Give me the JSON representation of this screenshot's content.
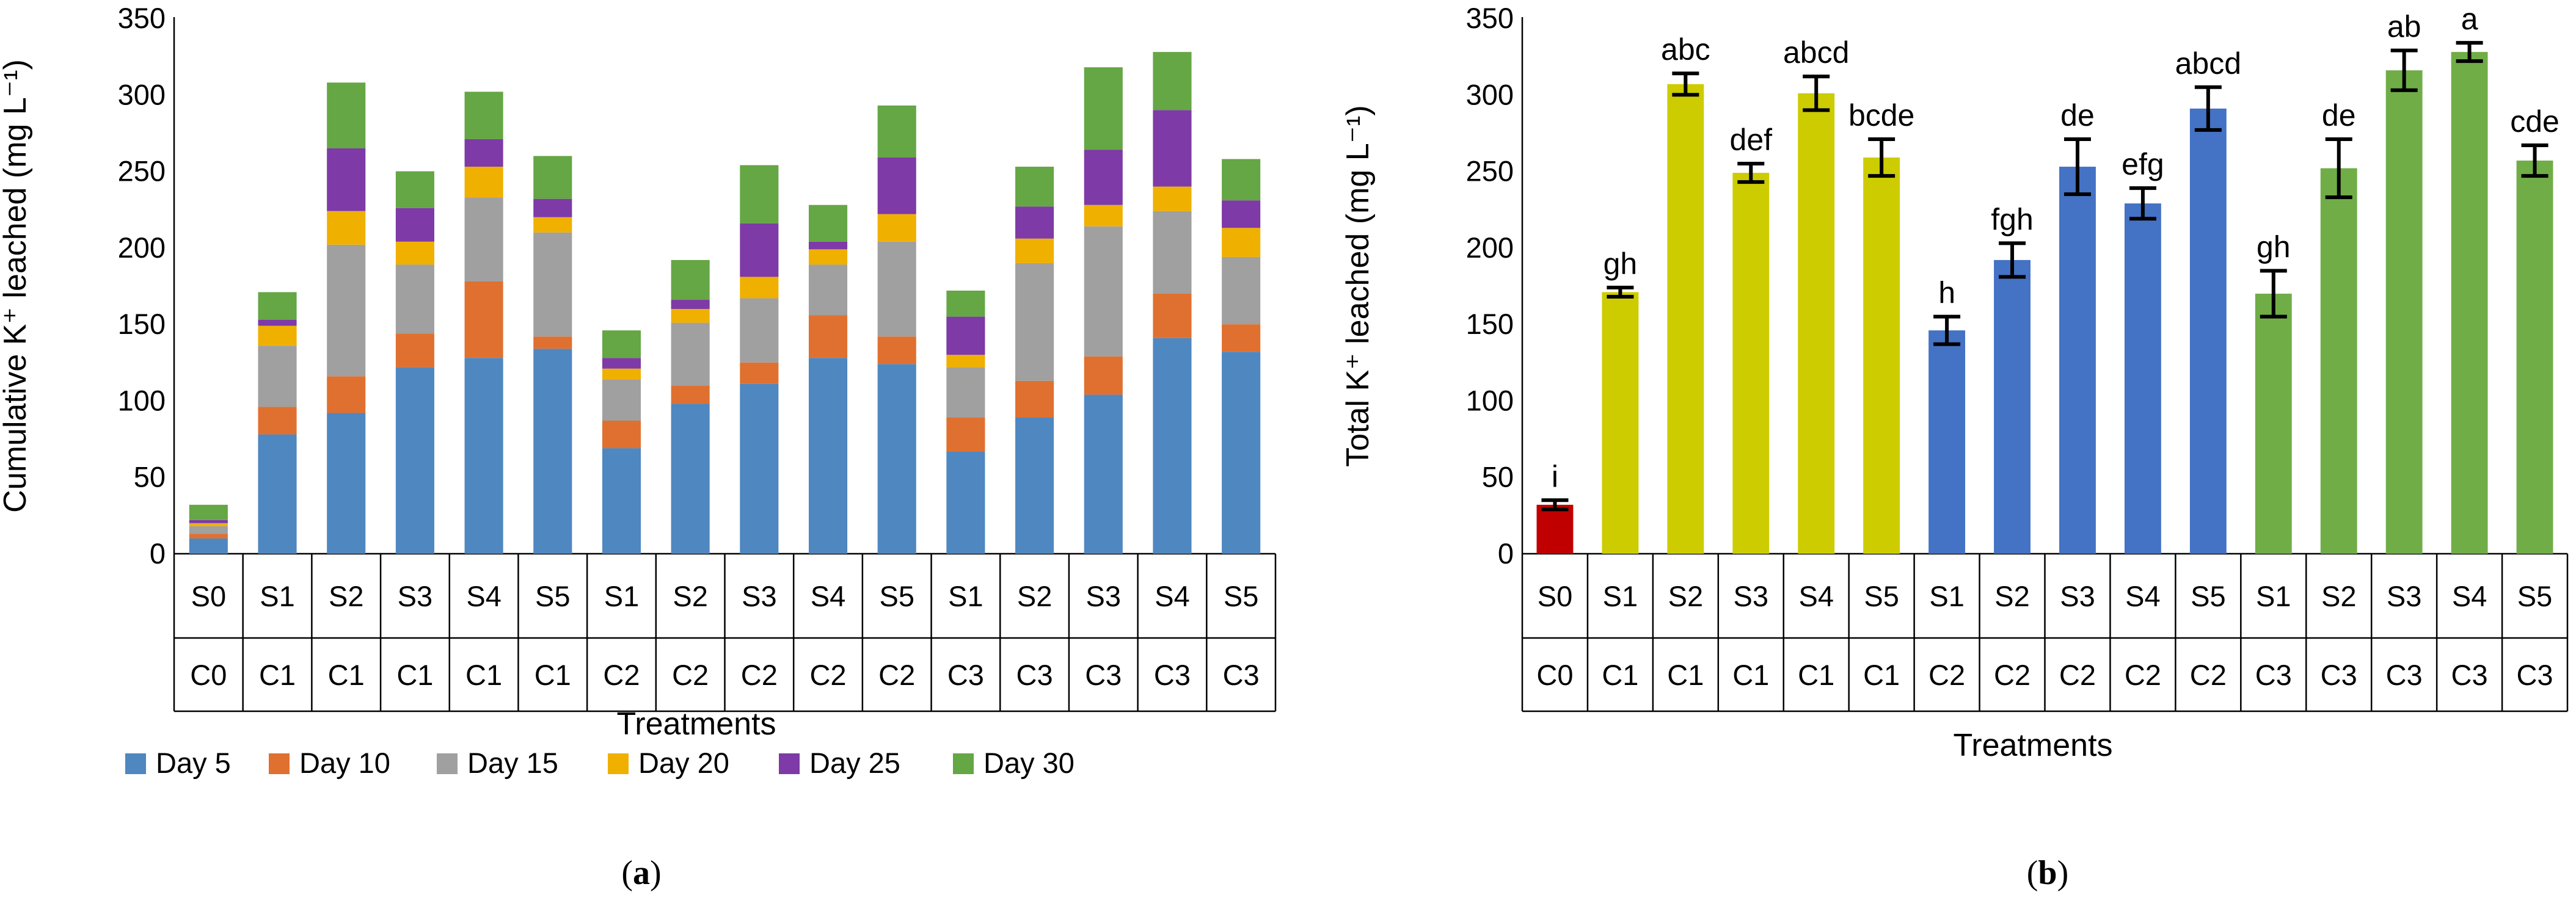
{
  "chart_data": [
    {
      "type": "bar",
      "stacked": true,
      "panel_label": "a",
      "ylabel": "Cumulative K⁺ leached (mg L⁻¹)",
      "xlabel": "Treatments",
      "ylim": [
        0,
        350
      ],
      "yticks": [
        0,
        50,
        100,
        150,
        200,
        250,
        300,
        350
      ],
      "categories": [
        {
          "s": "S0",
          "c": "C0"
        },
        {
          "s": "S1",
          "c": "C1"
        },
        {
          "s": "S2",
          "c": "C1"
        },
        {
          "s": "S3",
          "c": "C1"
        },
        {
          "s": "S4",
          "c": "C1"
        },
        {
          "s": "S5",
          "c": "C1"
        },
        {
          "s": "S1",
          "c": "C2"
        },
        {
          "s": "S2",
          "c": "C2"
        },
        {
          "s": "S3",
          "c": "C2"
        },
        {
          "s": "S4",
          "c": "C2"
        },
        {
          "s": "S5",
          "c": "C2"
        },
        {
          "s": "S1",
          "c": "C3"
        },
        {
          "s": "S2",
          "c": "C3"
        },
        {
          "s": "S3",
          "c": "C3"
        },
        {
          "s": "S4",
          "c": "C3"
        },
        {
          "s": "S5",
          "c": "C3"
        }
      ],
      "series": [
        {
          "name": "Day 5",
          "color": "#4f87c0",
          "values": [
            10,
            78,
            92,
            122,
            128,
            134,
            69,
            98,
            111,
            128,
            124,
            67,
            89,
            104,
            141,
            132
          ]
        },
        {
          "name": "Day 10",
          "color": "#e07030",
          "values": [
            3,
            18,
            24,
            22,
            50,
            8,
            18,
            12,
            14,
            28,
            18,
            22,
            24,
            25,
            29,
            18
          ]
        },
        {
          "name": "Day 15",
          "color": "#a0a0a0",
          "values": [
            5,
            40,
            86,
            45,
            55,
            68,
            27,
            41,
            42,
            33,
            62,
            33,
            77,
            85,
            54,
            44
          ]
        },
        {
          "name": "Day 20",
          "color": "#f0b000",
          "values": [
            2,
            13,
            22,
            15,
            20,
            10,
            7,
            9,
            14,
            10,
            18,
            8,
            16,
            14,
            16,
            19
          ]
        },
        {
          "name": "Day 25",
          "color": "#7e3aa6",
          "values": [
            2,
            4,
            41,
            22,
            18,
            12,
            7,
            6,
            35,
            5,
            37,
            25,
            21,
            36,
            50,
            18
          ]
        },
        {
          "name": "Day 30",
          "color": "#65a645",
          "values": [
            10,
            18,
            43,
            24,
            31,
            28,
            18,
            26,
            38,
            24,
            34,
            17,
            26,
            54,
            38,
            27
          ]
        }
      ]
    },
    {
      "type": "bar",
      "panel_label": "b",
      "ylabel": "Total K⁺ leached (mg L⁻¹)",
      "xlabel": "Treatments",
      "ylim": [
        0,
        350
      ],
      "yticks": [
        0,
        50,
        100,
        150,
        200,
        250,
        300,
        350
      ],
      "categories": [
        {
          "s": "S0",
          "c": "C0"
        },
        {
          "s": "S1",
          "c": "C1"
        },
        {
          "s": "S2",
          "c": "C1"
        },
        {
          "s": "S3",
          "c": "C1"
        },
        {
          "s": "S4",
          "c": "C1"
        },
        {
          "s": "S5",
          "c": "C1"
        },
        {
          "s": "S1",
          "c": "C2"
        },
        {
          "s": "S2",
          "c": "C2"
        },
        {
          "s": "S3",
          "c": "C2"
        },
        {
          "s": "S4",
          "c": "C2"
        },
        {
          "s": "S5",
          "c": "C2"
        },
        {
          "s": "S1",
          "c": "C3"
        },
        {
          "s": "S2",
          "c": "C3"
        },
        {
          "s": "S3",
          "c": "C3"
        },
        {
          "s": "S4",
          "c": "C3"
        },
        {
          "s": "S5",
          "c": "C3"
        }
      ],
      "values": [
        32,
        171,
        307,
        249,
        301,
        259,
        146,
        192,
        253,
        229,
        291,
        170,
        252,
        316,
        328,
        257
      ],
      "errors": [
        3,
        3,
        7,
        6,
        11,
        12,
        9,
        11,
        18,
        10,
        14,
        15,
        19,
        13,
        6,
        10
      ],
      "letters": [
        "i",
        "gh",
        "abc",
        "def",
        "abcd",
        "bcde",
        "h",
        "fgh",
        "de",
        "efg",
        "abcd",
        "gh",
        "de",
        "ab",
        "a",
        "cde"
      ],
      "colors": [
        "#c00000",
        "#cccc00",
        "#cccc00",
        "#cccc00",
        "#cccc00",
        "#cccc00",
        "#4472c4",
        "#4472c4",
        "#4472c4",
        "#4472c4",
        "#4472c4",
        "#70ad47",
        "#70ad47",
        "#70ad47",
        "#70ad47",
        "#70ad47"
      ]
    }
  ]
}
